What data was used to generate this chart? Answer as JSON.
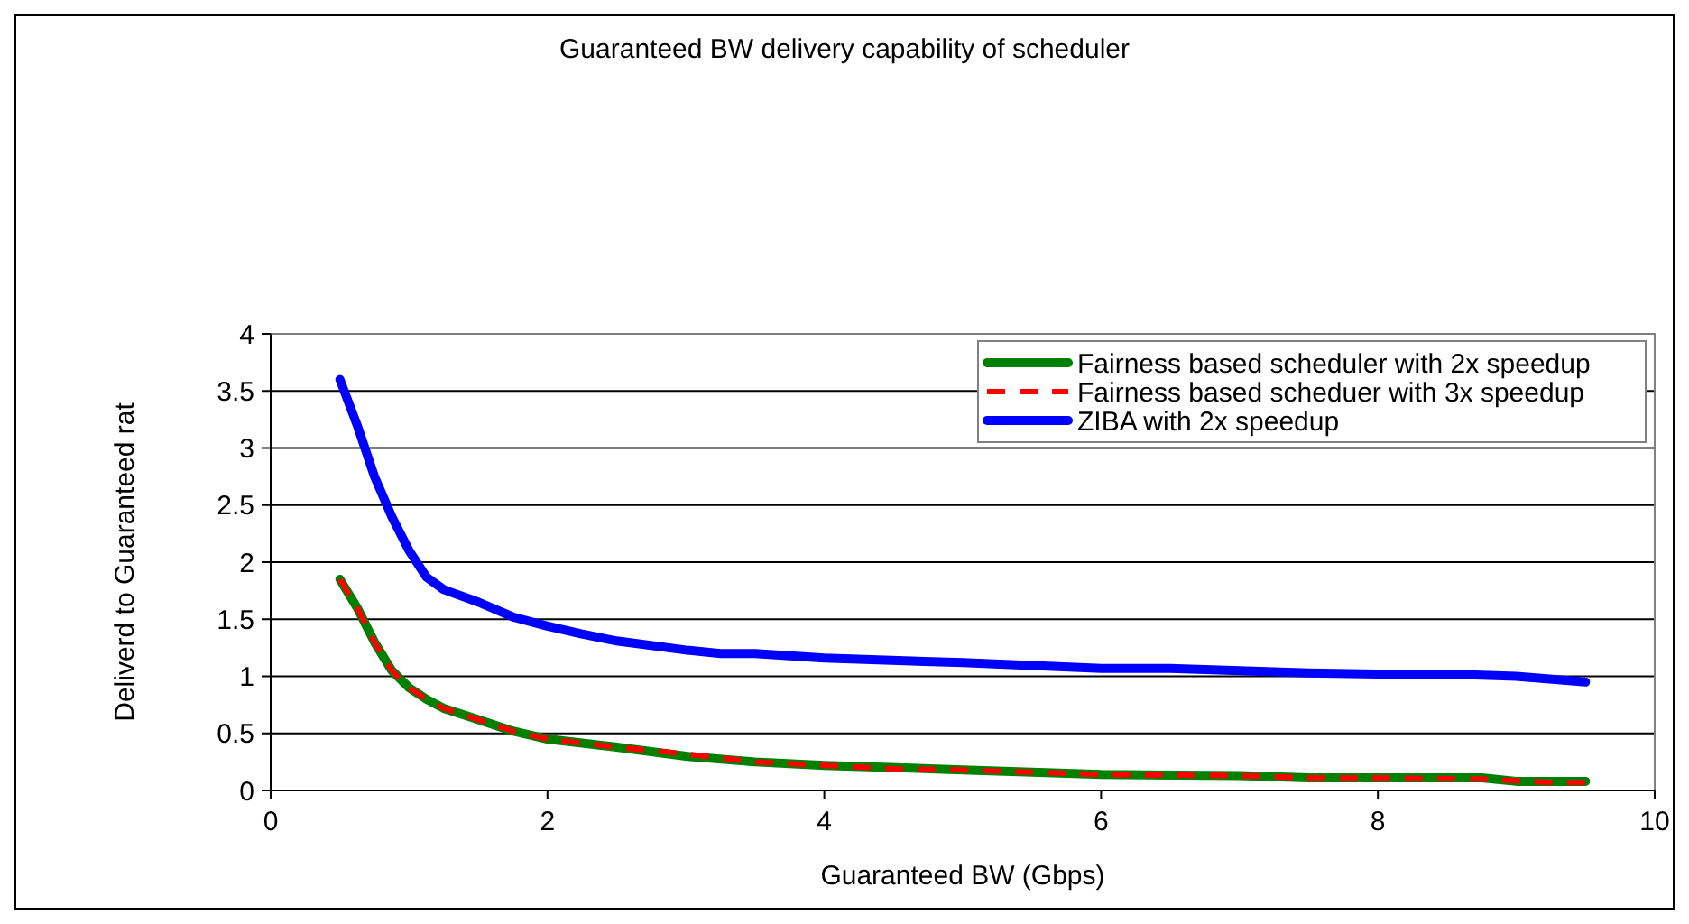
{
  "chart_data": {
    "type": "line",
    "title": "Guaranteed BW delivery capability of scheduler",
    "xlabel": "Guaranteed BW (Gbps)",
    "ylabel": "Deliverd to Guaranteed rat",
    "xlim": [
      0,
      10
    ],
    "xticks": [
      0,
      2,
      4,
      6,
      8,
      10
    ],
    "ylim": [
      0,
      4
    ],
    "yticks": [
      0,
      0.5,
      1,
      1.5,
      2,
      2.5,
      3,
      3.5,
      4
    ],
    "grid": "y",
    "legend": "top right",
    "marker": "none",
    "series": [
      {
        "name": "Fairness based scheduler with 2x speedup",
        "color": "#008000",
        "line_style": "solid",
        "x": [
          0.5,
          0.625,
          0.75,
          0.875,
          1,
          1.125,
          1.25,
          1.5,
          1.75,
          2,
          2.5,
          3,
          3.5,
          4,
          5,
          6,
          7,
          7.5,
          8,
          8.75,
          9,
          9.5
        ],
        "values": [
          1.85,
          1.6,
          1.3,
          1.05,
          0.9,
          0.8,
          0.72,
          0.62,
          0.52,
          0.45,
          0.38,
          0.3,
          0.25,
          0.22,
          0.18,
          0.14,
          0.13,
          0.11,
          0.11,
          0.11,
          0.08,
          0.08
        ]
      },
      {
        "name": "Fairness based scheduer with 3x speedup",
        "color": "#ff0000",
        "line_style": "dashed",
        "x": [
          0.5,
          0.625,
          0.75,
          0.875,
          1,
          1.125,
          1.25,
          1.5,
          1.75,
          2,
          2.5,
          3,
          3.5,
          4,
          4.5,
          5,
          6,
          7,
          7.5,
          8,
          8.75,
          9.25,
          9.5
        ],
        "values": [
          1.85,
          1.6,
          1.3,
          1.05,
          0.9,
          0.8,
          0.72,
          0.62,
          0.52,
          0.45,
          0.38,
          0.32,
          0.25,
          0.22,
          0.19,
          0.18,
          0.14,
          0.13,
          0.11,
          0.11,
          0.1,
          0.07,
          0.07
        ]
      },
      {
        "name": "ZIBA with 2x speedup",
        "color": "#0000ff",
        "line_style": "solid",
        "x": [
          0.5,
          0.625,
          0.75,
          0.875,
          1,
          1.125,
          1.25,
          1.5,
          1.75,
          2,
          2.25,
          2.5,
          3,
          3.25,
          3.5,
          4,
          5,
          6,
          6.5,
          7,
          7.5,
          8,
          8.5,
          9,
          9.5
        ],
        "values": [
          3.6,
          3.2,
          2.75,
          2.4,
          2.1,
          1.87,
          1.76,
          1.65,
          1.52,
          1.44,
          1.37,
          1.31,
          1.23,
          1.2,
          1.2,
          1.16,
          1.12,
          1.07,
          1.07,
          1.05,
          1.03,
          1.02,
          1.02,
          1,
          0.95
        ]
      }
    ]
  }
}
